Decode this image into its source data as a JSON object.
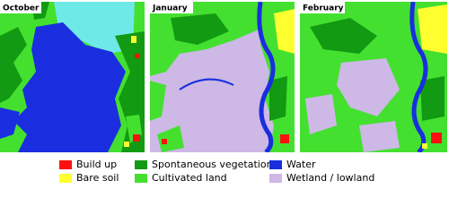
{
  "panels": [
    {
      "title": "October"
    },
    {
      "title": "January"
    },
    {
      "title": "February"
    }
  ],
  "legend": [
    {
      "label": "Build up",
      "color": "#ff1010"
    },
    {
      "label": "Bare soil",
      "color": "#ffff30"
    },
    {
      "label": "Spontaneous vegetation",
      "color": "#129a12"
    },
    {
      "label": "Cultivated land",
      "color": "#44e030"
    },
    {
      "label": "Water",
      "color": "#1a2ee0"
    },
    {
      "label": "Wetland / lowland",
      "color": "#cdb8e6"
    }
  ]
}
